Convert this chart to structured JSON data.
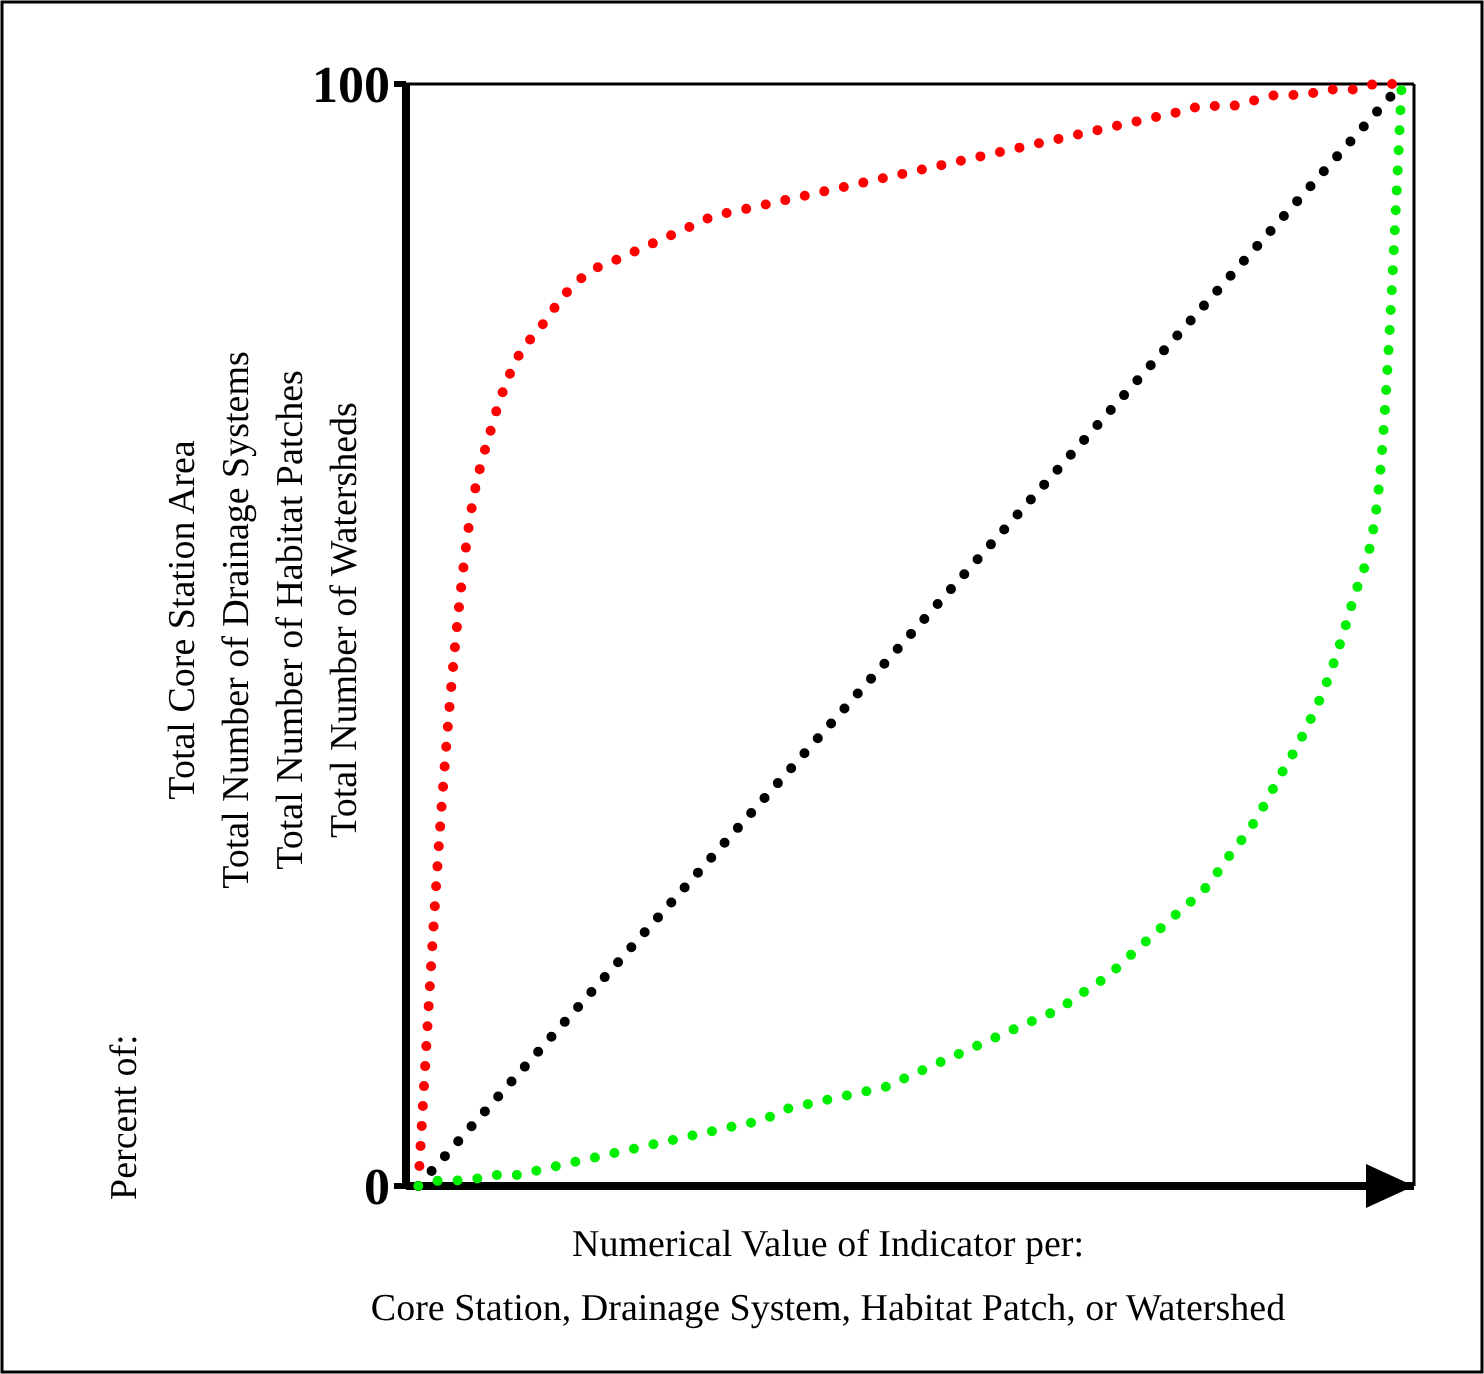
{
  "chart_data": {
    "type": "line",
    "ylabel": "Percent of:\nTotal Core Station Area\nTotal Number of Drainage Systems\nTotal Number of Habitat Patches\nTotal Number of Watersheds",
    "xlabel": "Numerical Value of Indicator per:\nCore Station, Drainage System, Habitat Patch, or Watershed",
    "categories": [
      null,
      null,
      null,
      null,
      null,
      null,
      null,
      null,
      null,
      null,
      null,
      null,
      null,
      null,
      null,
      null,
      null,
      null,
      null,
      null,
      null,
      null,
      null,
      null,
      null,
      null,
      null,
      null,
      null,
      null,
      null,
      null,
      null,
      null,
      null,
      null,
      null,
      null,
      null,
      null,
      null
    ],
    "ylim": [
      0,
      100
    ],
    "yticks": [
      0,
      100
    ],
    "tick_labels": "y",
    "marker": "none",
    "line_style": "dotted",
    "series": [
      {
        "color": "#ff0000",
        "values": [
          0,
          36,
          59,
          69,
          75,
          78,
          81,
          83,
          84,
          85,
          86,
          87,
          88,
          88.5,
          89,
          89.5,
          90,
          90.5,
          91,
          91.5,
          92,
          92.5,
          93,
          93.5,
          94,
          94.5,
          95,
          95.5,
          96,
          96.5,
          97,
          97.5,
          98,
          98,
          98.5,
          99,
          99,
          99.5,
          99.5,
          100,
          100
        ]
      },
      {
        "color": "#000000",
        "values": [
          0,
          2.5,
          5,
          7.5,
          10,
          12.5,
          15,
          17.5,
          20,
          22.5,
          25,
          27.5,
          30,
          32.5,
          35,
          37.5,
          40,
          42.5,
          45,
          47.5,
          50,
          52.5,
          55,
          57.5,
          60,
          62.5,
          65,
          67.5,
          70,
          72.5,
          75,
          77.5,
          80,
          82.5,
          85,
          87.5,
          90,
          92.5,
          95,
          97.5,
          100
        ]
      },
      {
        "color": "#00ee00",
        "values": [
          0,
          0.5,
          0.5,
          1,
          1,
          1.5,
          2,
          2.5,
          3,
          3.5,
          4,
          4.5,
          5,
          5.5,
          6,
          7,
          7.5,
          8,
          8.5,
          9,
          10,
          11,
          12,
          13,
          14,
          15,
          16,
          17.5,
          19,
          21,
          23,
          25,
          27,
          30,
          33,
          37,
          41,
          46,
          53,
          62,
          100
        ]
      }
    ]
  }
}
